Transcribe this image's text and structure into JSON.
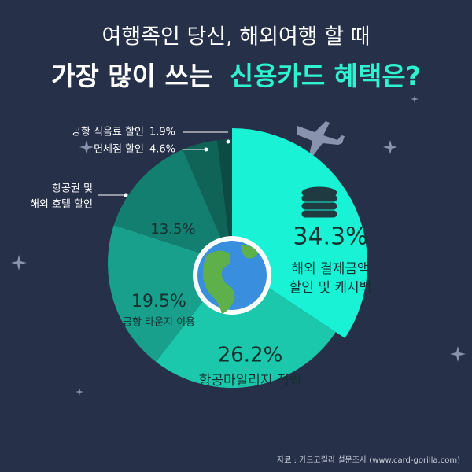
{
  "chart_data": {
    "type": "pie",
    "title": {
      "line1": "여행족인 당신, 해외여행 할 때",
      "line2": "가장 많이 쓰는",
      "highlight": "신용카드 혜택은?"
    },
    "categories": [
      [
        "해외 결제금액",
        "할인 및 캐시백"
      ],
      [
        "항공마일리지 적립"
      ],
      [
        "공항 라운지 이용"
      ],
      [
        "항공권 및",
        "해외 호텔 할인"
      ],
      [
        "면세점 할인"
      ],
      [
        "공항 식음료 할인"
      ]
    ],
    "values": [
      34.3,
      26.2,
      19.5,
      13.5,
      4.6,
      1.9
    ],
    "value_labels": [
      "34.3%",
      "26.2%",
      "19.5%",
      "13.5%",
      "4.6%",
      "1.9%"
    ],
    "colors": [
      "#19f2d4",
      "#1cc8ab",
      "#18a08d",
      "#137f70",
      "#0f6357",
      "#0c4c45"
    ],
    "source": "자료 : 카드고릴라 설문조사 (www.card-gorilla.com)"
  }
}
